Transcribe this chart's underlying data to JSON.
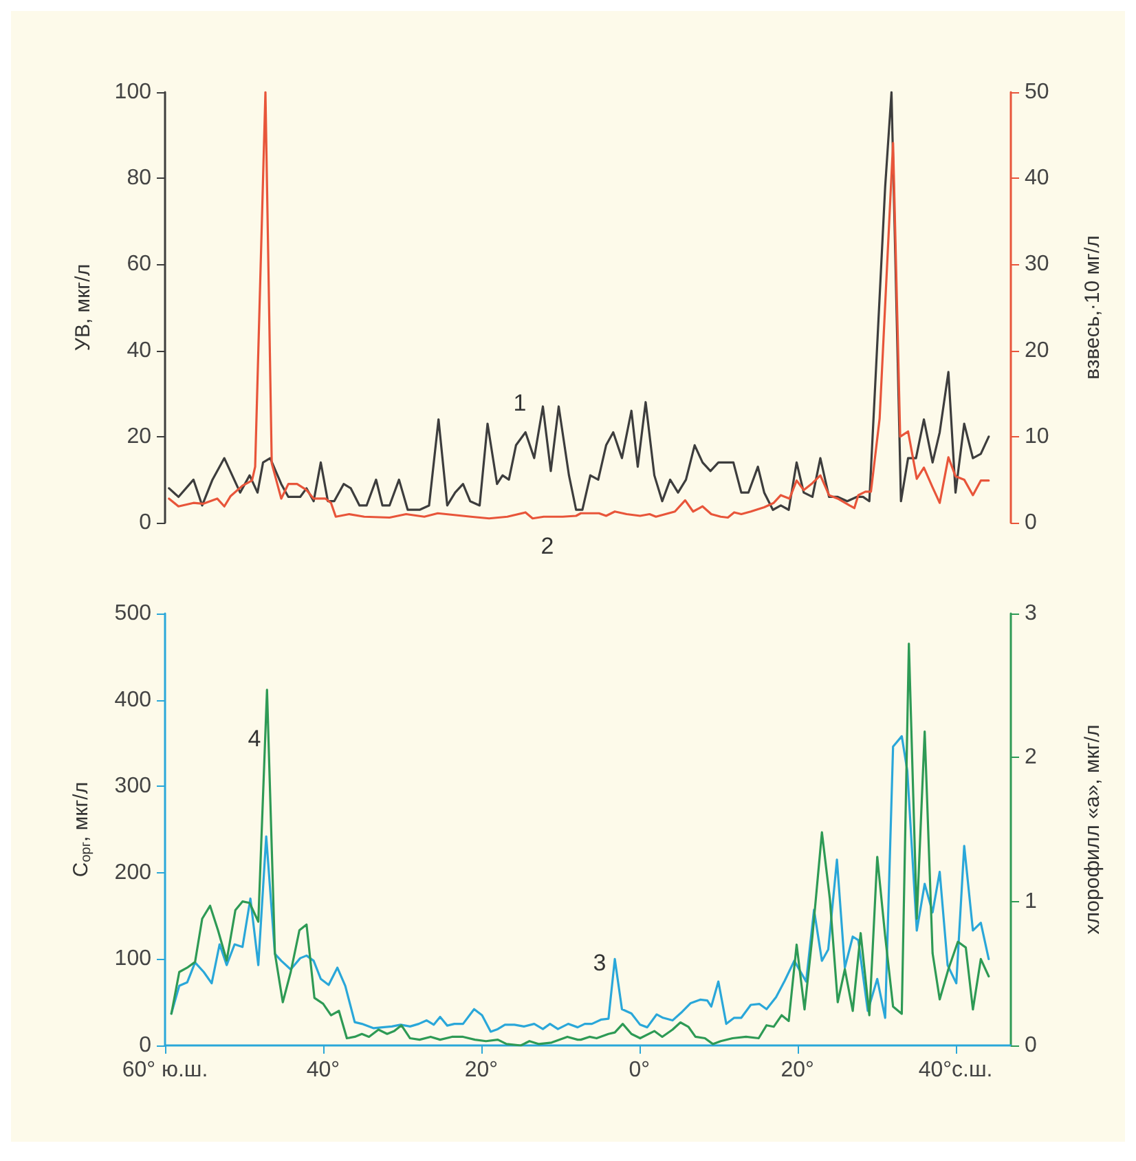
{
  "chart_data": [
    {
      "type": "line",
      "ylabel": "УВ, мкг/л",
      "y2label": "взвесь,·10 мг/л",
      "xlim": [
        -60,
        47
      ],
      "ylim": [
        0,
        100
      ],
      "yticks": [
        0,
        20,
        40,
        60,
        80,
        100
      ],
      "y2lim": [
        0,
        50
      ],
      "y2ticks": [
        0,
        10,
        20,
        30,
        40,
        50
      ],
      "tick_labels": "y",
      "grid": false,
      "marker": "none",
      "series": [
        {
          "color": "#3d3d3d",
          "x": [
            -59.5,
            -58.3,
            -56.4,
            -55.3,
            -54.0,
            -52.5,
            -50.5,
            -49.3,
            -48.3,
            -47.6,
            -46.7,
            -45.3,
            -44.4,
            -42.9,
            -42.1,
            -41.2,
            -40.3,
            -39.4,
            -38.6,
            -37.4,
            -36.5,
            -35.4,
            -34.5,
            -33.3,
            -32.5,
            -31.6,
            -30.4,
            -29.3,
            -27.8,
            -26.6,
            -25.4,
            -24.3,
            -23.3,
            -22.3,
            -21.4,
            -20.2,
            -19.2,
            -18.0,
            -17.3,
            -16.5,
            -15.6,
            -14.4,
            -13.3,
            -12.2,
            -11.2,
            -10.2,
            -8.9,
            -8.0,
            -7.2,
            -6.2,
            -5.2,
            -4.2,
            -3.3,
            -2.2,
            -1.0,
            -0.2,
            0.8,
            1.9,
            2.9,
            3.9,
            4.9,
            5.9,
            7.0,
            8.0,
            9.0,
            10.0,
            11.9,
            12.9,
            13.8,
            15.0,
            15.8,
            16.9,
            17.9,
            18.9,
            19.9,
            20.8,
            21.9,
            22.9,
            24.0,
            25.1,
            26.3,
            27.5,
            28.3,
            29.1,
            31.1,
            31.9,
            33.1,
            34.0,
            35.0,
            36.0,
            37.1,
            38.0,
            39.1,
            40.0,
            41.1,
            42.2,
            43.2,
            44.2
          ],
          "values": [
            8,
            6,
            10,
            4,
            10,
            15,
            7,
            11,
            7,
            14,
            15,
            9,
            6,
            6,
            8,
            5,
            14,
            5,
            5,
            9,
            8,
            4,
            4,
            10,
            4,
            4,
            10,
            3,
            3,
            4,
            24,
            4,
            7,
            9,
            5,
            4,
            23,
            9,
            11,
            10,
            18,
            21,
            15,
            27,
            12,
            27,
            11,
            3,
            3,
            11,
            10,
            18,
            21,
            15,
            26,
            13,
            28,
            11,
            5,
            10,
            7,
            10,
            18,
            14,
            12,
            14,
            14,
            7,
            7,
            13,
            7,
            3,
            4,
            3,
            14,
            7,
            6,
            15,
            6,
            6,
            5,
            6,
            6,
            5,
            78,
            100,
            5,
            15,
            15,
            24,
            14,
            21,
            35,
            7,
            23,
            15,
            16,
            20
          ]
        },
        {
          "color": "#e8553a",
          "axis": "y2",
          "x": [
            -59.5,
            -58.3,
            -56.4,
            -55.2,
            -53.4,
            -52.5,
            -51.7,
            -50.2,
            -49.0,
            -48.6,
            -47.3,
            -46.5,
            -45.3,
            -44.4,
            -43.3,
            -42.1,
            -41.2,
            -39.7,
            -39.0,
            -38.4,
            -36.7,
            -34.8,
            -31.6,
            -29.5,
            -27.2,
            -25.5,
            -21.3,
            -19.0,
            -16.7,
            -14.4,
            -13.5,
            -12.1,
            -9.7,
            -8.0,
            -7.4,
            -5.1,
            -4.2,
            -3.1,
            -1.6,
            0.1,
            1.3,
            2.1,
            3.3,
            4.5,
            5.8,
            6.8,
            8.0,
            9.1,
            10.3,
            11.2,
            12.0,
            12.9,
            14.1,
            15.8,
            17.0,
            17.9,
            19.0,
            19.9,
            20.8,
            21.9,
            22.9,
            24.0,
            25.1,
            26.6,
            27.2,
            27.7,
            28.6,
            29.3,
            30.4,
            32.1,
            33.0,
            34.0,
            35.1,
            36.0,
            37.1,
            38.0,
            39.1,
            40.0,
            41.1,
            42.2,
            43.2,
            44.2
          ],
          "values": [
            2.8,
            1.9,
            2.3,
            2.2,
            2.8,
            1.9,
            3.1,
            4.3,
            4.9,
            6.5,
            50,
            6.9,
            2.8,
            4.5,
            4.5,
            3.8,
            2.8,
            2.8,
            2.3,
            0.7,
            1.0,
            0.7,
            0.6,
            1.0,
            0.7,
            1.1,
            0.7,
            0.5,
            0.7,
            1.2,
            0.5,
            0.7,
            0.7,
            0.8,
            1.1,
            1.1,
            0.8,
            1.3,
            1.0,
            0.8,
            1.0,
            0.7,
            1.0,
            1.3,
            2.6,
            1.3,
            1.9,
            1.0,
            0.7,
            0.6,
            1.2,
            1.0,
            1.3,
            1.8,
            2.3,
            3.2,
            2.8,
            4.9,
            3.8,
            4.6,
            5.5,
            3.2,
            2.8,
            2.0,
            1.7,
            3.2,
            3.6,
            3.6,
            12.1,
            44.1,
            10.0,
            10.6,
            5.1,
            6.4,
            4.1,
            2.3,
            7.6,
            5.4,
            5.0,
            3.2,
            4.9,
            4.9
          ]
        }
      ],
      "annotations": [
        "1",
        "2"
      ]
    },
    {
      "type": "line",
      "ylabel": "C$_{орг}$, мкг/л",
      "y2label": "хлорофилл «a», мкг/л",
      "xlim": [
        -60,
        47
      ],
      "xticks": [
        {
          "value": -60,
          "label": "60° ю.ш."
        },
        {
          "value": -40,
          "label": "40°"
        },
        {
          "value": -20,
          "label": "20°"
        },
        {
          "value": 0,
          "label": "0°"
        },
        {
          "value": 20,
          "label": "20°"
        },
        {
          "value": 40,
          "label": "40°с.ш."
        }
      ],
      "ylim": [
        0,
        500
      ],
      "yticks": [
        0,
        100,
        200,
        300,
        400,
        500
      ],
      "y2lim": [
        0,
        3
      ],
      "y2ticks": [
        0,
        1,
        2,
        3
      ],
      "grid": false,
      "marker": "none",
      "series": [
        {
          "color": "#2aa7d9",
          "x": [
            -59.2,
            -58.2,
            -57.2,
            -56.2,
            -55.1,
            -54.1,
            -53.1,
            -52.2,
            -51.2,
            -50.2,
            -49.2,
            -48.2,
            -47.2,
            -46.1,
            -45.3,
            -44.1,
            -42.9,
            -42.1,
            -41.2,
            -40.3,
            -39.3,
            -38.2,
            -37.2,
            -36.0,
            -35.1,
            -33.6,
            -32.5,
            -31.3,
            -30.2,
            -29.0,
            -27.9,
            -26.9,
            -26.0,
            -25.2,
            -24.3,
            -23.4,
            -22.3,
            -20.9,
            -19.9,
            -18.8,
            -17.9,
            -17.0,
            -15.8,
            -14.6,
            -13.3,
            -12.2,
            -11.3,
            -10.3,
            -9.0,
            -7.8,
            -6.9,
            -6.0,
            -4.8,
            -3.9,
            -3.1,
            -2.2,
            -1.0,
            0.1,
            1.0,
            2.2,
            3.0,
            4.2,
            5.3,
            6.5,
            7.7,
            8.6,
            9.1,
            10.0,
            11.0,
            12.0,
            12.9,
            14.1,
            15.2,
            16.1,
            17.3,
            18.4,
            19.6,
            21.1,
            22.1,
            23.1,
            23.9,
            25.0,
            26.0,
            27.0,
            27.7,
            28.9,
            30.1,
            31.1,
            32.1,
            33.2,
            33.9,
            35.1,
            36.1,
            37.1,
            38.0,
            39.0,
            40.1,
            41.1,
            42.2,
            43.2,
            44.2
          ],
          "values": [
            37,
            69,
            73,
            96,
            85,
            72,
            117,
            93,
            117,
            114,
            170,
            93,
            242,
            106,
            98,
            88,
            101,
            104,
            98,
            77,
            70,
            90,
            69,
            27,
            25,
            20,
            21,
            22,
            24,
            22,
            25,
            29,
            24,
            33,
            23,
            25,
            25,
            42,
            35,
            16,
            19,
            24,
            24,
            22,
            25,
            19,
            25,
            19,
            25,
            21,
            25,
            25,
            30,
            31,
            100,
            42,
            37,
            24,
            21,
            36,
            32,
            29,
            38,
            49,
            53,
            52,
            45,
            74,
            25,
            32,
            32,
            47,
            48,
            42,
            56,
            75,
            98,
            74,
            157,
            98,
            111,
            215,
            90,
            126,
            122,
            40,
            77,
            32,
            346,
            358,
            318,
            133,
            187,
            154,
            201,
            93,
            72,
            231,
            133,
            142,
            100
          ]
        },
        {
          "color": "#2e9a55",
          "axis": "y2",
          "x": [
            -59.2,
            -58.2,
            -57.2,
            -56.2,
            -55.3,
            -54.3,
            -53.3,
            -52.2,
            -51.1,
            -50.2,
            -49.3,
            -48.2,
            -47.1,
            -46.1,
            -45.1,
            -44.1,
            -43.0,
            -42.1,
            -41.1,
            -40.0,
            -39.0,
            -38.0,
            -37.0,
            -36.0,
            -35.1,
            -34.2,
            -33.0,
            -31.9,
            -31.0,
            -30.1,
            -29.0,
            -27.8,
            -26.4,
            -25.2,
            -23.7,
            -22.3,
            -20.8,
            -19.4,
            -17.9,
            -16.8,
            -15.0,
            -13.9,
            -12.7,
            -11.1,
            -9.1,
            -7.8,
            -7.4,
            -6.3,
            -5.4,
            -3.9,
            -3.1,
            -2.1,
            -1.0,
            0.1,
            1.9,
            2.9,
            4.2,
            5.2,
            6.2,
            7.1,
            8.3,
            9.3,
            10.3,
            11.8,
            13.5,
            15.1,
            16.1,
            17.0,
            18.0,
            18.9,
            19.9,
            20.9,
            21.9,
            23.1,
            24.1,
            25.1,
            26.0,
            27.0,
            28.0,
            29.1,
            30.1,
            31.1,
            32.1,
            33.2,
            34.1,
            35.1,
            36.1,
            37.1,
            38.0,
            39.1,
            40.3,
            41.3,
            42.2,
            43.2,
            44.2
          ],
          "values": [
            0.22,
            0.51,
            0.54,
            0.58,
            0.88,
            0.97,
            0.8,
            0.59,
            0.94,
            1.0,
            0.99,
            0.86,
            2.47,
            0.64,
            0.3,
            0.51,
            0.8,
            0.84,
            0.33,
            0.29,
            0.21,
            0.24,
            0.05,
            0.06,
            0.08,
            0.06,
            0.11,
            0.08,
            0.1,
            0.14,
            0.05,
            0.04,
            0.06,
            0.04,
            0.06,
            0.06,
            0.04,
            0.03,
            0.04,
            0.01,
            0.0,
            0.03,
            0.01,
            0.02,
            0.06,
            0.04,
            0.04,
            0.06,
            0.05,
            0.08,
            0.09,
            0.15,
            0.08,
            0.05,
            0.1,
            0.06,
            0.11,
            0.16,
            0.13,
            0.06,
            0.05,
            0.01,
            0.03,
            0.05,
            0.06,
            0.05,
            0.14,
            0.13,
            0.21,
            0.17,
            0.7,
            0.25,
            0.76,
            1.48,
            1.02,
            0.3,
            0.53,
            0.24,
            0.78,
            0.21,
            1.31,
            0.76,
            0.27,
            0.22,
            2.79,
            0.88,
            2.18,
            0.64,
            0.32,
            0.53,
            0.72,
            0.68,
            0.25,
            0.6,
            0.48
          ]
        }
      ],
      "annotations": [
        "3",
        "4"
      ]
    }
  ]
}
